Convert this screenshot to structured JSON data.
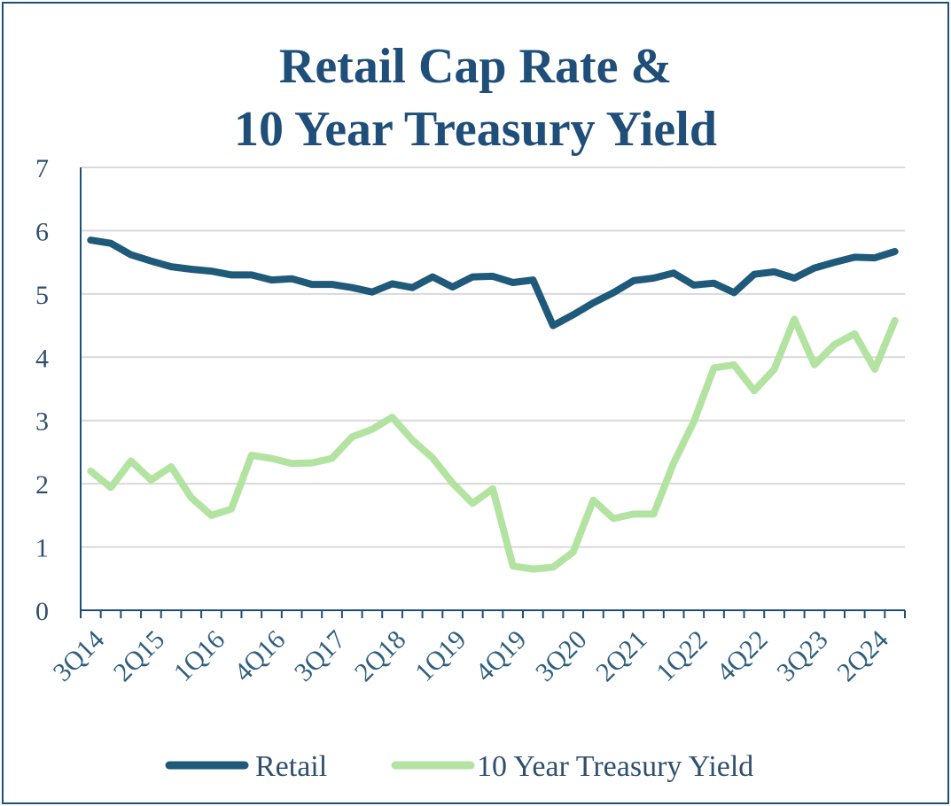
{
  "chart_data": {
    "type": "line",
    "title_line1": "Retail Cap Rate &",
    "title_line2": "10 Year Treasury Yield",
    "ylim": [
      0,
      7
    ],
    "yticks": [
      "0",
      "1",
      "2",
      "3",
      "4",
      "5",
      "6",
      "7"
    ],
    "grid": true,
    "legend_position": "bottom",
    "xtick_labels": [
      "3Q14",
      "2Q15",
      "1Q16",
      "4Q16",
      "3Q17",
      "2Q18",
      "1Q19",
      "4Q19",
      "3Q20",
      "2Q21",
      "1Q22",
      "4Q22",
      "3Q23",
      "2Q24"
    ],
    "categories": [
      "3Q14",
      "4Q14",
      "1Q15",
      "2Q15",
      "3Q15",
      "4Q15",
      "1Q16",
      "2Q16",
      "3Q16",
      "4Q16",
      "1Q17",
      "2Q17",
      "3Q17",
      "4Q17",
      "1Q18",
      "2Q18",
      "3Q18",
      "4Q18",
      "1Q19",
      "2Q19",
      "3Q19",
      "4Q19",
      "1Q20",
      "2Q20",
      "3Q20",
      "4Q20",
      "1Q21",
      "2Q21",
      "3Q21",
      "4Q21",
      "1Q22",
      "2Q22",
      "3Q22",
      "4Q22",
      "1Q23",
      "2Q23",
      "3Q23",
      "4Q23",
      "1Q24",
      "2Q24",
      "3Q24"
    ],
    "series": [
      {
        "name": "Retail",
        "color": "#1f5a7a",
        "values": [
          5.85,
          5.8,
          5.62,
          5.52,
          5.43,
          5.39,
          5.36,
          5.3,
          5.3,
          5.22,
          5.24,
          5.15,
          5.15,
          5.1,
          5.03,
          5.16,
          5.1,
          5.27,
          5.11,
          5.27,
          5.28,
          5.18,
          5.22,
          4.5,
          4.67,
          4.86,
          5.02,
          5.21,
          5.25,
          5.33,
          5.14,
          5.17,
          5.02,
          5.31,
          5.35,
          5.25,
          5.41,
          5.5,
          5.58,
          5.57,
          5.67
        ]
      },
      {
        "name": "10 Year Treasury Yield",
        "color": "#b3e3a1",
        "values": [
          2.2,
          1.94,
          2.36,
          2.06,
          2.27,
          1.78,
          1.5,
          1.6,
          2.45,
          2.4,
          2.32,
          2.33,
          2.4,
          2.74,
          2.86,
          3.05,
          2.69,
          2.41,
          2.01,
          1.69,
          1.92,
          0.7,
          0.65,
          0.68,
          0.92,
          1.74,
          1.45,
          1.52,
          1.52,
          2.33,
          2.98,
          3.83,
          3.88,
          3.47,
          3.81,
          4.6,
          3.88,
          4.2,
          4.37,
          3.81,
          4.58
        ]
      }
    ]
  }
}
